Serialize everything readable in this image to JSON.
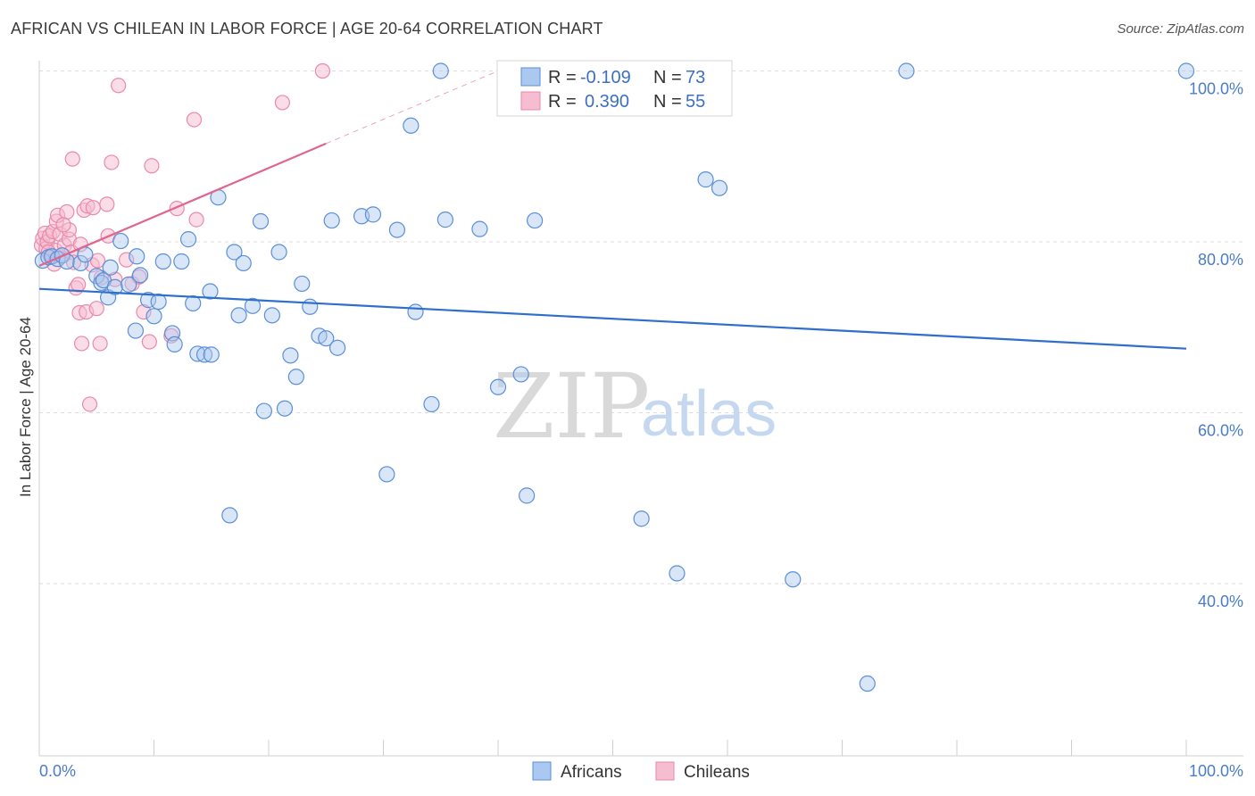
{
  "title": "AFRICAN VS CHILEAN IN LABOR FORCE | AGE 20-64 CORRELATION CHART",
  "source": "Source: ZipAtlas.com",
  "watermark": {
    "zip": "ZIP",
    "atlas": "atlas"
  },
  "colors": {
    "africans_fill": "#aac8f0",
    "africans_stroke": "#5b8fd6",
    "africans_line": "#2f6fcc",
    "chileans_fill": "#f6bcd0",
    "chileans_stroke": "#e98aab",
    "chileans_line": "#e06690",
    "tick_label": "#4a7cc9",
    "grid": "#dddddd"
  },
  "legend": {
    "r_label": "R =",
    "n_label": "N =",
    "africans": {
      "r": "-0.109",
      "n": "73"
    },
    "chileans": {
      "r": "0.390",
      "n": "55"
    }
  },
  "chart_data": {
    "type": "scatter",
    "title": "AFRICAN VS CHILEAN IN LABOR FORCE | AGE 20-64 CORRELATION CHART",
    "xlabel": "",
    "ylabel": "In Labor Force | Age 20-64",
    "xlim": [
      0,
      100
    ],
    "ylim": [
      18,
      102
    ],
    "x_tick_labels": [
      "0.0%",
      "100.0%"
    ],
    "y_ticks": [
      40,
      60,
      80,
      100
    ],
    "y_tick_labels": [
      "40.0%",
      "60.0%",
      "80.0%",
      "100.0%"
    ],
    "grid": true,
    "series": [
      {
        "name": "Africans",
        "r": -0.109,
        "n": 73,
        "trend": {
          "x": [
            0,
            100
          ],
          "y": [
            74.5,
            67.5
          ]
        },
        "points": [
          [
            0.3,
            77.8
          ],
          [
            0.8,
            78.2
          ],
          [
            1.1,
            78.3
          ],
          [
            1.6,
            78.0
          ],
          [
            2.0,
            78.4
          ],
          [
            2.4,
            77.7
          ],
          [
            3.6,
            77.5
          ],
          [
            5.0,
            76.0
          ],
          [
            5.4,
            75.2
          ],
          [
            5.6,
            75.5
          ],
          [
            6.0,
            73.5
          ],
          [
            6.6,
            74.7
          ],
          [
            7.1,
            80.1
          ],
          [
            7.8,
            75.0
          ],
          [
            8.4,
            69.6
          ],
          [
            8.5,
            78.3
          ],
          [
            8.8,
            76.1
          ],
          [
            9.5,
            73.2
          ],
          [
            10.0,
            71.3
          ],
          [
            10.4,
            73.0
          ],
          [
            10.8,
            77.7
          ],
          [
            11.6,
            69.3
          ],
          [
            11.8,
            68.0
          ],
          [
            12.4,
            77.7
          ],
          [
            13.0,
            80.3
          ],
          [
            13.4,
            72.8
          ],
          [
            13.8,
            66.9
          ],
          [
            14.4,
            66.8
          ],
          [
            15.0,
            66.8
          ],
          [
            14.9,
            74.2
          ],
          [
            15.6,
            85.2
          ],
          [
            16.6,
            48.0
          ],
          [
            17.0,
            78.8
          ],
          [
            17.4,
            71.4
          ],
          [
            17.8,
            77.5
          ],
          [
            18.6,
            72.5
          ],
          [
            19.3,
            82.4
          ],
          [
            19.6,
            60.2
          ],
          [
            20.3,
            71.4
          ],
          [
            20.9,
            78.8
          ],
          [
            21.4,
            60.5
          ],
          [
            21.9,
            66.7
          ],
          [
            22.4,
            64.2
          ],
          [
            22.9,
            75.1
          ],
          [
            23.6,
            72.4
          ],
          [
            24.4,
            69.0
          ],
          [
            25.0,
            68.7
          ],
          [
            25.5,
            82.5
          ],
          [
            26.0,
            67.6
          ],
          [
            28.1,
            83.0
          ],
          [
            29.1,
            83.2
          ],
          [
            30.3,
            52.8
          ],
          [
            31.2,
            81.4
          ],
          [
            32.4,
            93.6
          ],
          [
            32.8,
            71.8
          ],
          [
            34.2,
            61.0
          ],
          [
            35.0,
            100.0
          ],
          [
            35.4,
            82.6
          ],
          [
            38.4,
            81.5
          ],
          [
            40.0,
            63.0
          ],
          [
            42.0,
            64.5
          ],
          [
            42.5,
            50.3
          ],
          [
            43.2,
            82.5
          ],
          [
            52.5,
            47.6
          ],
          [
            55.6,
            41.2
          ],
          [
            58.1,
            87.3
          ],
          [
            59.3,
            86.3
          ],
          [
            65.7,
            40.5
          ],
          [
            72.2,
            28.3
          ],
          [
            75.6,
            100.0
          ],
          [
            100.0,
            100.0
          ],
          [
            4.0,
            78.5
          ],
          [
            6.2,
            77.0
          ]
        ]
      },
      {
        "name": "Chileans",
        "r": 0.39,
        "n": 55,
        "trend": {
          "x": [
            0,
            25
          ],
          "y": [
            77.2,
            91.5
          ]
        },
        "trend_extension": {
          "x": [
            25,
            40
          ],
          "y": [
            91.5,
            100
          ]
        },
        "points": [
          [
            0.2,
            79.6
          ],
          [
            0.3,
            80.4
          ],
          [
            0.5,
            81.0
          ],
          [
            0.6,
            79.2
          ],
          [
            0.7,
            80.0
          ],
          [
            0.9,
            80.7
          ],
          [
            1.0,
            78.2
          ],
          [
            1.2,
            81.2
          ],
          [
            1.4,
            79.0
          ],
          [
            1.5,
            82.4
          ],
          [
            1.6,
            83.1
          ],
          [
            1.8,
            80.9
          ],
          [
            2.0,
            78.5
          ],
          [
            2.2,
            79.6
          ],
          [
            2.4,
            83.5
          ],
          [
            2.6,
            80.3
          ],
          [
            2.8,
            78.8
          ],
          [
            2.6,
            81.4
          ],
          [
            2.9,
            89.7
          ],
          [
            3.0,
            77.6
          ],
          [
            3.2,
            74.6
          ],
          [
            3.4,
            75.0
          ],
          [
            3.5,
            71.7
          ],
          [
            3.6,
            79.7
          ],
          [
            3.7,
            68.1
          ],
          [
            3.9,
            83.7
          ],
          [
            4.1,
            71.8
          ],
          [
            4.2,
            84.2
          ],
          [
            4.4,
            61.0
          ],
          [
            4.6,
            77.3
          ],
          [
            4.7,
            84.0
          ],
          [
            5.0,
            72.2
          ],
          [
            5.1,
            77.8
          ],
          [
            5.3,
            68.1
          ],
          [
            5.4,
            75.8
          ],
          [
            5.9,
            84.4
          ],
          [
            6.0,
            80.7
          ],
          [
            6.3,
            89.3
          ],
          [
            6.6,
            75.6
          ],
          [
            6.9,
            98.3
          ],
          [
            7.6,
            77.9
          ],
          [
            8.1,
            75.1
          ],
          [
            8.7,
            75.9
          ],
          [
            9.1,
            71.8
          ],
          [
            9.6,
            68.3
          ],
          [
            9.8,
            88.9
          ],
          [
            11.5,
            69.0
          ],
          [
            12.0,
            83.9
          ],
          [
            13.5,
            94.3
          ],
          [
            13.7,
            82.6
          ],
          [
            21.2,
            96.3
          ],
          [
            24.7,
            100.0
          ],
          [
            0.8,
            78.8
          ],
          [
            1.3,
            77.4
          ],
          [
            2.1,
            82.0
          ]
        ]
      }
    ]
  },
  "bottom_legend": {
    "items": [
      "Africans",
      "Chileans"
    ]
  }
}
